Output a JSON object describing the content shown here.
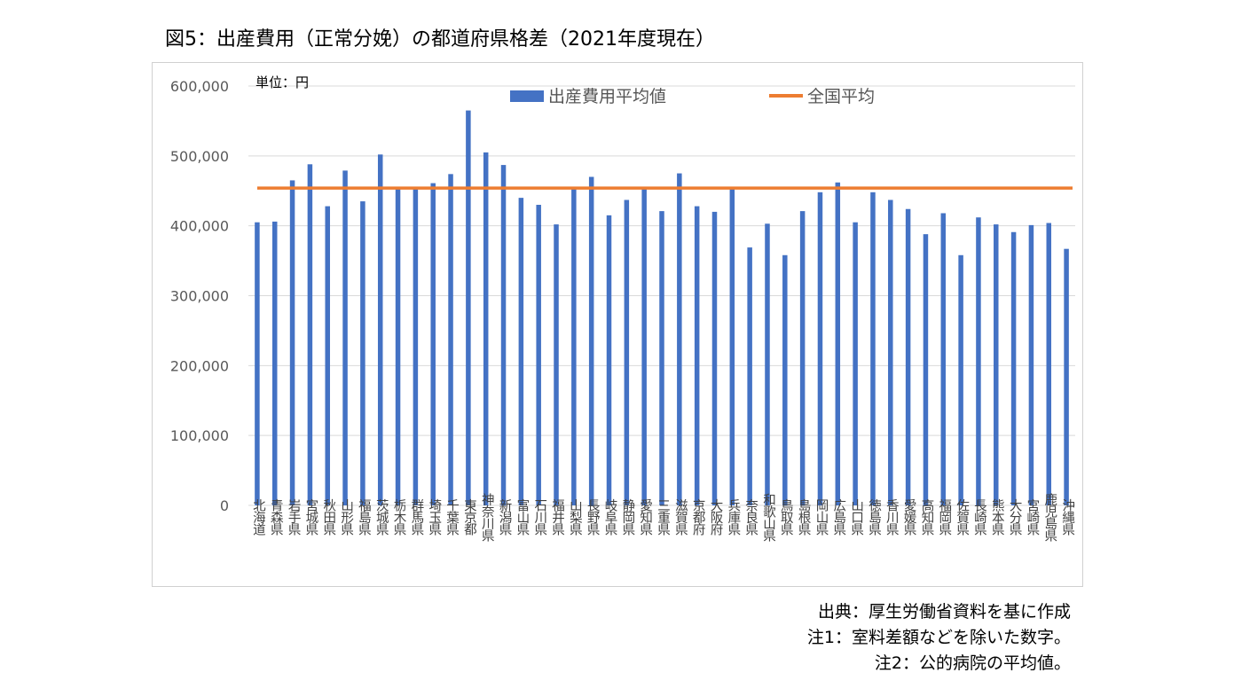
{
  "figure_title": "図5：出産費用（正常分娩）の都道府県格差（2021年度現在）",
  "notes": [
    "出典：厚生労働省資料を基に作成",
    "注1：室料差額などを除いた数字。",
    "注2：公的病院の平均値。"
  ],
  "chart_data": {
    "type": "bar",
    "unit_label": "単位：円",
    "ylim": [
      0,
      600000
    ],
    "yticks": [
      "0",
      "100,000",
      "200,000",
      "300,000",
      "400,000",
      "500,000",
      "600,000"
    ],
    "grid": true,
    "legend_position": "top",
    "categories": [
      "北海道",
      "青森県",
      "岩手県",
      "宮城県",
      "秋田県",
      "山形県",
      "福島県",
      "茨城県",
      "栃木県",
      "群馬県",
      "埼玉県",
      "千葉県",
      "東京都",
      "神奈川県",
      "新潟県",
      "富山県",
      "石川県",
      "福井県",
      "山梨県",
      "長野県",
      "岐阜県",
      "静岡県",
      "愛知県",
      "三重県",
      "滋賀県",
      "京都府",
      "大阪府",
      "兵庫県",
      "奈良県",
      "和歌山県",
      "鳥取県",
      "島根県",
      "岡山県",
      "広島県",
      "山口県",
      "徳島県",
      "香川県",
      "愛媛県",
      "高知県",
      "福岡県",
      "佐賀県",
      "長崎県",
      "熊本県",
      "大分県",
      "宮崎県",
      "鹿児島県",
      "沖縄県"
    ],
    "series": [
      {
        "name": "出産費用平均値",
        "color": "#4472c4",
        "values": [
          405000,
          406000,
          465000,
          488000,
          428000,
          479000,
          435000,
          502000,
          453000,
          453000,
          461000,
          474000,
          565000,
          505000,
          487000,
          440000,
          430000,
          402000,
          453000,
          470000,
          415000,
          437000,
          453000,
          421000,
          475000,
          428000,
          420000,
          453000,
          369000,
          403000,
          358000,
          421000,
          448000,
          462000,
          405000,
          448000,
          437000,
          424000,
          388000,
          418000,
          358000,
          412000,
          402000,
          391000,
          401000,
          404000,
          367000
        ]
      },
      {
        "name": "全国平均",
        "color": "#ed7d31",
        "type": "line",
        "value": 454000
      }
    ]
  }
}
